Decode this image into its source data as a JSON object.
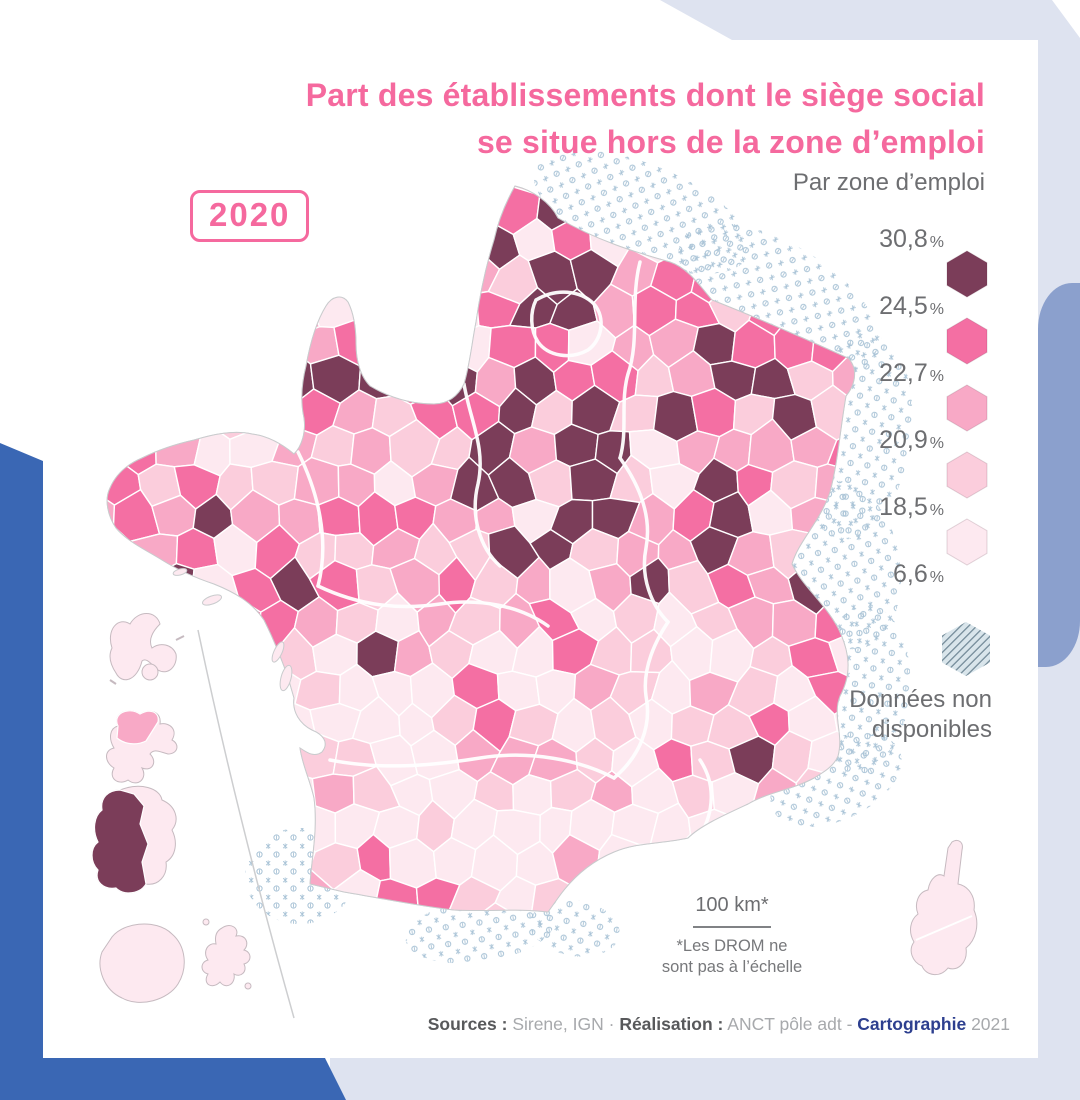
{
  "title": {
    "line1": "Part des établissements dont le siège social",
    "line2": "se situe hors de la zone d’emploi"
  },
  "subtitle": "Par zone d’emploi",
  "year_badge": "2020",
  "legend": {
    "labels": [
      "30,8",
      "24,5",
      "22,7",
      "20,9",
      "18,5",
      "6,6"
    ],
    "unit": "%",
    "swatches": [
      "#7b3d59",
      "#f46fa3",
      "#f8a9c6",
      "#fbcddc",
      "#fde9f0"
    ]
  },
  "no_data": {
    "line1": "Données non",
    "line2": "disponibles"
  },
  "scale_bar": {
    "label": "100 km*",
    "note_line1": "*Les DROM ne",
    "note_line2": "sont pas à l’échelle"
  },
  "footer": {
    "sources_label": "Sources :",
    "sources_value": " Sirene, IGN ",
    "separator": "· ",
    "realisation_label": "Réalisation :",
    "realisation_value": " ANCT pôle adt ",
    "dash": "- ",
    "cartographie": "Cartographie",
    "year": " 2021"
  },
  "chart_data": {
    "type": "choropleth_map",
    "title": "Part des établissements dont le siège social se situe hors de la zone d’emploi",
    "subtitle": "Par zone d’emploi",
    "year_shown": "2020",
    "unit": "%",
    "legend_breaks": [
      30.8,
      24.5,
      22.7,
      20.9,
      18.5,
      6.6
    ],
    "legend_break_labels": [
      "30,8 %",
      "24,5 %",
      "22,7 %",
      "20,9 %",
      "18,5 %",
      "6,6 %"
    ],
    "palette_dark_to_light": [
      "#7b3d59",
      "#f46fa3",
      "#f8a9c6",
      "#fbcddc",
      "#fde9f0"
    ],
    "no_data_swatch": {
      "fill": "#d9e5eb",
      "hatch_line": "#7e94a1",
      "label": "Données non disponibles"
    },
    "geography": "France (zones d’emploi), DROM et Corse",
    "accent_colors": {
      "title_pink": "#f5699e",
      "stipple_blue": "#a9c3d6"
    }
  }
}
